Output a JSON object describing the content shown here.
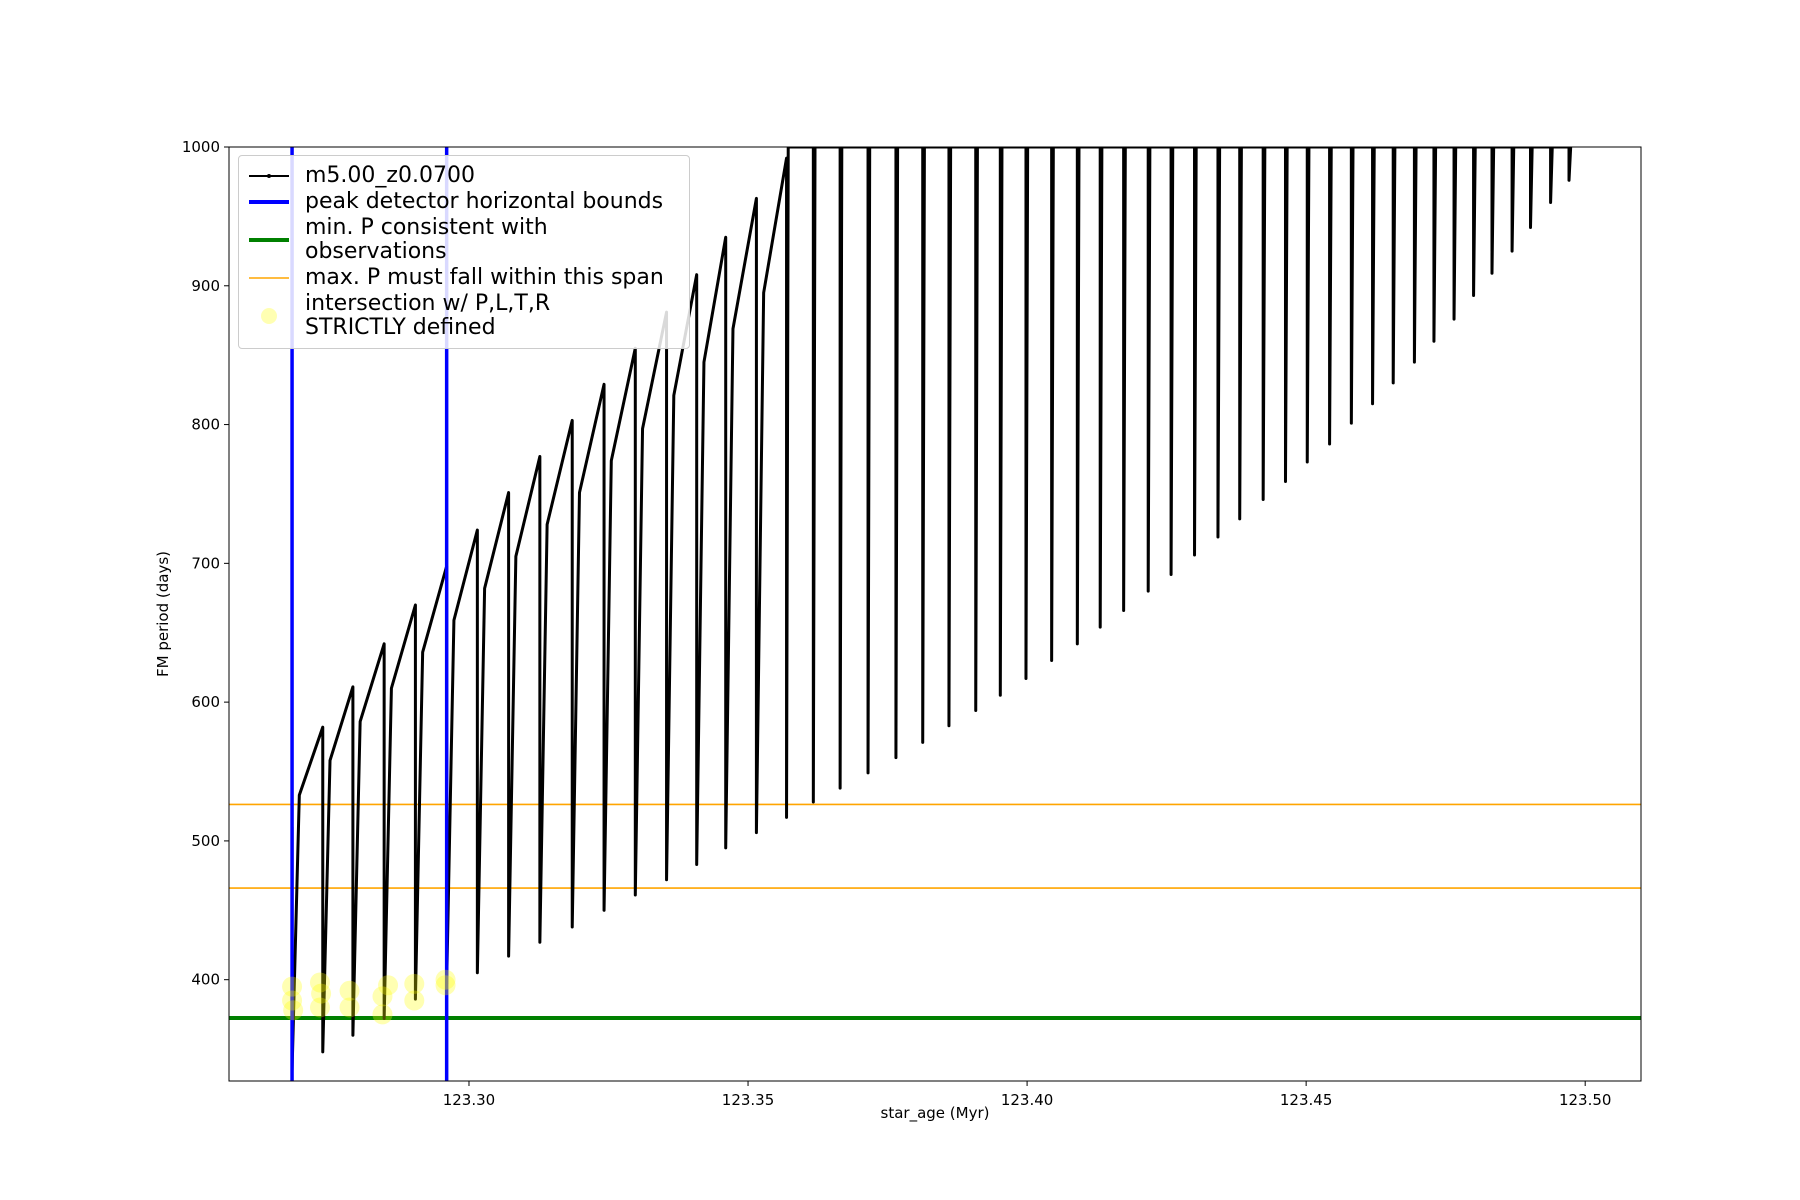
{
  "chart_data": {
    "type": "line",
    "xlabel": "star_age (Myr)",
    "ylabel": "FM period (days)",
    "xlim": [
      123.257,
      123.51
    ],
    "ylim": [
      327,
      1000
    ],
    "xticks": [
      {
        "value": 123.3,
        "label": "123.30"
      },
      123.35,
      {
        "value": 123.4,
        "label": "123.40"
      },
      123.45,
      {
        "value": 123.5,
        "label": "123.50"
      }
    ],
    "yticks": [
      400,
      500,
      600,
      700,
      800,
      900,
      1000
    ],
    "grid": false,
    "legend": "upper left",
    "series": [
      {
        "name": "m5.00_z0.0700",
        "kind": "line",
        "color": "#000000",
        "x": [
          123.2683,
          123.2683,
          123.2696,
          123.2738,
          123.2738,
          123.2751,
          123.2792,
          123.2792,
          123.2805,
          123.2848,
          123.2848,
          123.2861,
          123.2904,
          123.2904,
          123.2917,
          123.296,
          123.296,
          123.2973,
          123.3015,
          123.3015,
          123.3028,
          123.3071,
          123.3071,
          123.3084,
          123.3127,
          123.3127,
          123.314,
          123.3185,
          123.3185,
          123.3198,
          123.3242,
          123.3242,
          123.3255,
          123.3298,
          123.3298,
          123.3311,
          123.3354,
          123.3354,
          123.3367,
          123.3408,
          123.3408,
          123.3421,
          123.346,
          123.346,
          123.3473,
          123.3515,
          123.3515,
          123.3528,
          123.3569,
          123.3569,
          123.3572,
          123.3617,
          123.3617,
          123.362,
          123.3665,
          123.3665,
          123.3668,
          123.3715,
          123.3715,
          123.3718,
          123.3765,
          123.3765,
          123.3768,
          123.3813,
          123.3813,
          123.3816,
          123.386,
          123.386,
          123.3863,
          123.3908,
          123.3908,
          123.3911,
          123.3952,
          123.3952,
          123.3955,
          123.3998,
          123.3998,
          123.4001,
          123.4044,
          123.4044,
          123.4047,
          123.409,
          123.409,
          123.4093,
          123.4131,
          123.4131,
          123.4134,
          123.4173,
          123.4173,
          123.4176,
          123.4217,
          123.4217,
          123.422,
          123.4258,
          123.4258,
          123.4261,
          123.43,
          123.43,
          123.4303,
          123.4342,
          123.4342,
          123.4345,
          123.4381,
          123.4381,
          123.4384,
          123.4423,
          123.4423,
          123.4426,
          123.4463,
          123.4463,
          123.4466,
          123.4502,
          123.4502,
          123.4505,
          123.4542,
          123.4542,
          123.4545,
          123.4581,
          123.4581,
          123.4584,
          123.4619,
          123.4619,
          123.4622,
          123.4656,
          123.4656,
          123.4659,
          123.4694,
          123.4694,
          123.4697,
          123.4729,
          123.4729,
          123.4732,
          123.4765,
          123.4765,
          123.4768,
          123.48,
          123.48,
          123.4803,
          123.4833,
          123.4833,
          123.4836,
          123.4869,
          123.4869,
          123.4872,
          123.4902,
          123.4902,
          123.4905,
          123.4938,
          123.4938,
          123.4941,
          123.4971,
          123.4971,
          123.4974
        ],
        "y": [
          510,
          335,
          533,
          582,
          348,
          558,
          611,
          360,
          586,
          642,
          372,
          610,
          670,
          386,
          636,
          698,
          397,
          659,
          724,
          405,
          682,
          751,
          417,
          705,
          777,
          427,
          728,
          803,
          438,
          751,
          829,
          450,
          774,
          855,
          461,
          797,
          881,
          472,
          821,
          908,
          483,
          845,
          935,
          495,
          869,
          963,
          506,
          895,
          992,
          517,
          1000,
          1000,
          528,
          1000,
          1000,
          538,
          1000,
          1000,
          549,
          1000,
          1000,
          560,
          1000,
          1000,
          571,
          1000,
          1000,
          583,
          1000,
          1000,
          594,
          1000,
          1000,
          605,
          1000,
          1000,
          617,
          1000,
          1000,
          630,
          1000,
          1000,
          642,
          1000,
          1000,
          654,
          1000,
          1000,
          666,
          1000,
          1000,
          680,
          1000,
          1000,
          692,
          1000,
          1000,
          706,
          1000,
          1000,
          719,
          1000,
          1000,
          732,
          1000,
          1000,
          746,
          1000,
          1000,
          759,
          1000,
          1000,
          773,
          1000,
          1000,
          786,
          1000,
          1000,
          801,
          1000,
          1000,
          815,
          1000,
          1000,
          830,
          1000,
          1000,
          845,
          1000,
          1000,
          860,
          1000,
          1000,
          876,
          1000,
          1000,
          893,
          1000,
          1000,
          909,
          1000,
          1000,
          925,
          1000,
          1000,
          942,
          1000,
          1000,
          960,
          1000,
          1000,
          976,
          1000
        ]
      },
      {
        "name": "peak detector horizontal bounds",
        "kind": "vline",
        "color": "#0000ff",
        "x": [
          123.2683,
          123.296
        ]
      },
      {
        "name": "min. P consistent with observations",
        "kind": "hline",
        "color": "#008000",
        "y": [
          372.4
        ]
      },
      {
        "name": "max. P must fall within this span",
        "kind": "hline",
        "color": "#ffa500",
        "y": [
          466,
          526.3
        ]
      },
      {
        "name": "intersection w/ P,L,T,R\nSTRICTLY defined",
        "kind": "scatter",
        "color": "#ffff00",
        "x": [
          123.2683,
          123.2683,
          123.2685,
          123.2733,
          123.2733,
          123.2735,
          123.2786,
          123.2786,
          123.2845,
          123.2845,
          123.2855,
          123.2902,
          123.2902,
          123.2958,
          123.2958
        ],
        "y": [
          385,
          395,
          378,
          380,
          398,
          390,
          392,
          380,
          375,
          388,
          396,
          385,
          397,
          396,
          400
        ]
      }
    ]
  }
}
